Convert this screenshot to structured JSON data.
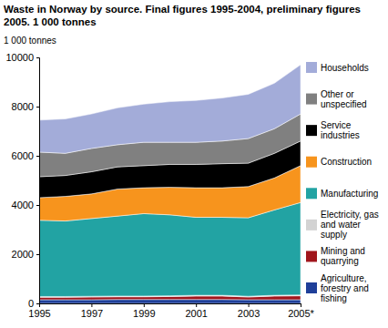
{
  "chart_data": {
    "type": "area",
    "stacked": true,
    "title": "Waste in Norway by source. Final figures 1995-2004, preliminary figures 2005. 1 000 tonnes",
    "y_label": "1 000 tonnes",
    "x": [
      1995,
      1996,
      1997,
      1998,
      1999,
      2000,
      2001,
      2002,
      2003,
      2004,
      2005
    ],
    "xlim": [
      1995,
      2005
    ],
    "xticks": [
      1995,
      1997,
      1999,
      2001,
      2003,
      {
        "value": 2005,
        "label": "2005*"
      }
    ],
    "ylim": [
      0,
      10000
    ],
    "yticks": [
      0,
      2000,
      4000,
      6000,
      8000,
      10000
    ],
    "grid": false,
    "legend": "right",
    "series": [
      {
        "name": "Agriculture, forestry and fishing",
        "color": "#1f3f99",
        "values": [
          150,
          150,
          150,
          160,
          160,
          160,
          160,
          160,
          150,
          150,
          150
        ]
      },
      {
        "name": "Mining and quarrying",
        "color": "#a0151c",
        "values": [
          100,
          100,
          110,
          110,
          110,
          120,
          140,
          140,
          110,
          150,
          160
        ]
      },
      {
        "name": "Electricity, gas and water supply",
        "color": "#d3d3d3",
        "values": [
          30,
          30,
          30,
          30,
          30,
          30,
          30,
          30,
          30,
          30,
          30
        ]
      },
      {
        "name": "Manufacturing",
        "color": "#22a3a3",
        "values": [
          3100,
          3070,
          3160,
          3250,
          3350,
          3290,
          3170,
          3170,
          3190,
          3470,
          3760
        ]
      },
      {
        "name": "Construction",
        "color": "#f7941d",
        "values": [
          920,
          1000,
          1000,
          1100,
          1050,
          1120,
          1200,
          1200,
          1270,
          1300,
          1500
        ]
      },
      {
        "name": "Service industries",
        "color": "#000000",
        "values": [
          850,
          850,
          900,
          900,
          900,
          930,
          950,
          980,
          950,
          1000,
          1000
        ]
      },
      {
        "name": "Other or unspecified",
        "color": "#808080",
        "values": [
          1000,
          900,
          950,
          900,
          950,
          900,
          900,
          920,
          1000,
          1000,
          1100
        ]
      },
      {
        "name": "Households",
        "color": "#a3acd9",
        "values": [
          1300,
          1400,
          1400,
          1500,
          1550,
          1650,
          1700,
          1750,
          1800,
          1850,
          2000
        ]
      }
    ]
  }
}
